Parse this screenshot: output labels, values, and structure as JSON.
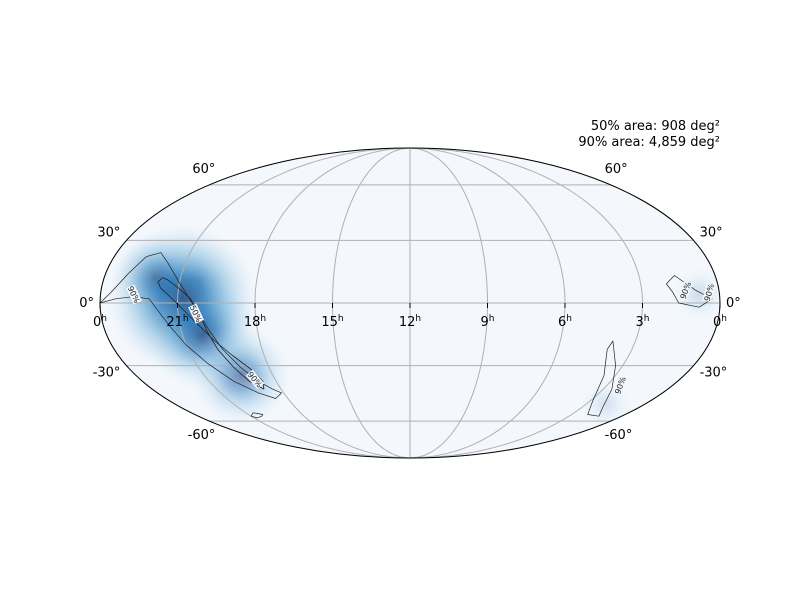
{
  "chart_data": {
    "type": "heatmap",
    "projection": "mollweide",
    "colormap": "Blues",
    "accent_color": "#08306b",
    "low_color": "#f7fbff",
    "grid": true,
    "area_labels": [
      "50% area: 908 deg²",
      "90% area: 4,859 deg²"
    ],
    "ra_ticks": [
      {
        "ra": 24,
        "label": "0",
        "sup": "h"
      },
      {
        "ra": 21,
        "label": "21",
        "sup": "h"
      },
      {
        "ra": 18,
        "label": "18",
        "sup": "h"
      },
      {
        "ra": 15,
        "label": "15",
        "sup": "h"
      },
      {
        "ra": 12,
        "label": "12",
        "sup": "h"
      },
      {
        "ra": 9,
        "label": "9",
        "sup": "h"
      },
      {
        "ra": 6,
        "label": "6",
        "sup": "h"
      },
      {
        "ra": 3,
        "label": "3",
        "sup": "h"
      },
      {
        "ra": 0,
        "label": "0",
        "sup": "h"
      }
    ],
    "dec_ticks": [
      {
        "dec": 60,
        "label": "60°"
      },
      {
        "dec": 30,
        "label": "30°"
      },
      {
        "dec": 0,
        "label": "0°"
      },
      {
        "dec": -30,
        "label": "-30°"
      },
      {
        "dec": -60,
        "label": "-60°"
      }
    ],
    "contour_labels": {
      "c50": "50%",
      "c90": "90%"
    },
    "hotspots": [
      {
        "ra": 20.8,
        "dec": 2,
        "peak": 1.0
      },
      {
        "ra": 20.2,
        "dec": -15,
        "peak": 0.65
      },
      {
        "ra": 19.4,
        "dec": -35,
        "peak": 0.55
      },
      {
        "ra": 22.0,
        "dec": 12,
        "peak": 0.45
      },
      {
        "ra": 2.0,
        "dec": -50,
        "peak": 0.12
      },
      {
        "ra": 0.8,
        "dec": 4,
        "peak": 0.15
      }
    ],
    "contour_50": [
      [
        [
          21.85,
          10
        ],
        [
          21.7,
          12
        ],
        [
          21.5,
          11
        ],
        [
          21.0,
          7
        ],
        [
          20.5,
          2
        ],
        [
          20.2,
          -4
        ],
        [
          20.0,
          -13
        ],
        [
          19.8,
          -22
        ],
        [
          19.5,
          -31
        ],
        [
          19.2,
          -38
        ],
        [
          18.8,
          -42
        ],
        [
          18.6,
          -38
        ],
        [
          18.8,
          -32
        ],
        [
          19.3,
          -25
        ],
        [
          19.8,
          -18
        ],
        [
          20.3,
          -10
        ],
        [
          20.8,
          -3
        ],
        [
          21.3,
          3
        ],
        [
          21.7,
          7
        ]
      ]
    ],
    "contour_90": [
      [
        [
          24,
          0
        ],
        [
          23.6,
          5
        ],
        [
          23.1,
          14
        ],
        [
          22.7,
          22
        ],
        [
          22.2,
          24
        ],
        [
          21.7,
          19
        ],
        [
          21.1,
          11
        ],
        [
          20.6,
          3
        ],
        [
          20.2,
          -5
        ],
        [
          19.9,
          -13
        ],
        [
          19.6,
          -22
        ],
        [
          19.2,
          -31
        ],
        [
          18.8,
          -38
        ],
        [
          18.4,
          -42
        ],
        [
          18.1,
          -44
        ],
        [
          18.6,
          -47
        ],
        [
          19.2,
          -44
        ],
        [
          19.9,
          -38
        ],
        [
          20.5,
          -29
        ],
        [
          21.0,
          -20
        ],
        [
          21.4,
          -11
        ],
        [
          21.8,
          -3
        ],
        [
          22.1,
          2
        ],
        [
          22.7,
          3
        ],
        [
          23.4,
          2
        ]
      ],
      [
        [
          1.6,
          0
        ],
        [
          1.8,
          5
        ],
        [
          2.0,
          9
        ],
        [
          1.6,
          13
        ],
        [
          0.9,
          6
        ],
        [
          0.3,
          2
        ],
        [
          0.8,
          -2
        ]
      ],
      [
        [
          3.9,
          -18
        ],
        [
          3.3,
          -30
        ],
        [
          2.6,
          -42
        ],
        [
          1.9,
          -52
        ],
        [
          1.3,
          -57
        ],
        [
          2.1,
          -56
        ],
        [
          2.9,
          -48
        ],
        [
          3.5,
          -35
        ],
        [
          4.0,
          -22
        ]
      ],
      [
        [
          20.2,
          -56
        ],
        [
          20.4,
          -57
        ],
        [
          20.8,
          -58
        ],
        [
          21.0,
          -57
        ],
        [
          20.6,
          -55
        ]
      ]
    ]
  }
}
